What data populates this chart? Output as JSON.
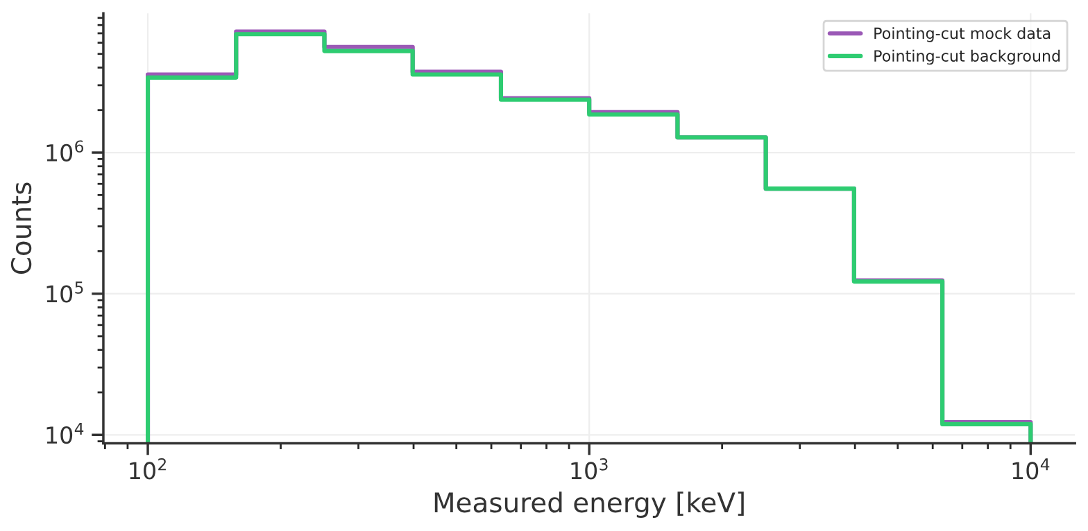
{
  "chart_data": {
    "type": "histogram",
    "xlabel": "Measured energy [keV]",
    "ylabel": "Counts",
    "bins": [
      100,
      158.5,
      251.2,
      398.1,
      631,
      1000,
      1585,
      2512,
      3981,
      6310,
      10000
    ],
    "series": [
      {
        "name": "Pointing-cut mock data",
        "color": "#9b59b6",
        "values": [
          3570000,
          7200000,
          5600000,
          3730000,
          2420000,
          1930000,
          1280000,
          555000,
          124000,
          12300
        ]
      },
      {
        "name": "Pointing-cut background",
        "color": "#2ecc71",
        "values": [
          3400000,
          6900000,
          5240000,
          3570000,
          2370000,
          1860000,
          1280000,
          555000,
          122000,
          11900
        ]
      }
    ],
    "log": "xy",
    "xlim": [
      79.3,
      12600
    ],
    "ylim": [
      8700,
      9700000
    ],
    "xticks": [
      {
        "value": 100,
        "label": "10$^{2}$"
      },
      {
        "value": 1000,
        "label": "10$^{3}$"
      },
      {
        "value": 10000,
        "label": "10$^{4}$"
      }
    ],
    "yticks": [
      {
        "value": 10000,
        "label": "10$^{4}$"
      },
      {
        "value": 100000,
        "label": "10$^{5}$"
      },
      {
        "value": 1000000,
        "label": "10$^{6}$"
      }
    ],
    "grid": true,
    "legend": "top right"
  }
}
